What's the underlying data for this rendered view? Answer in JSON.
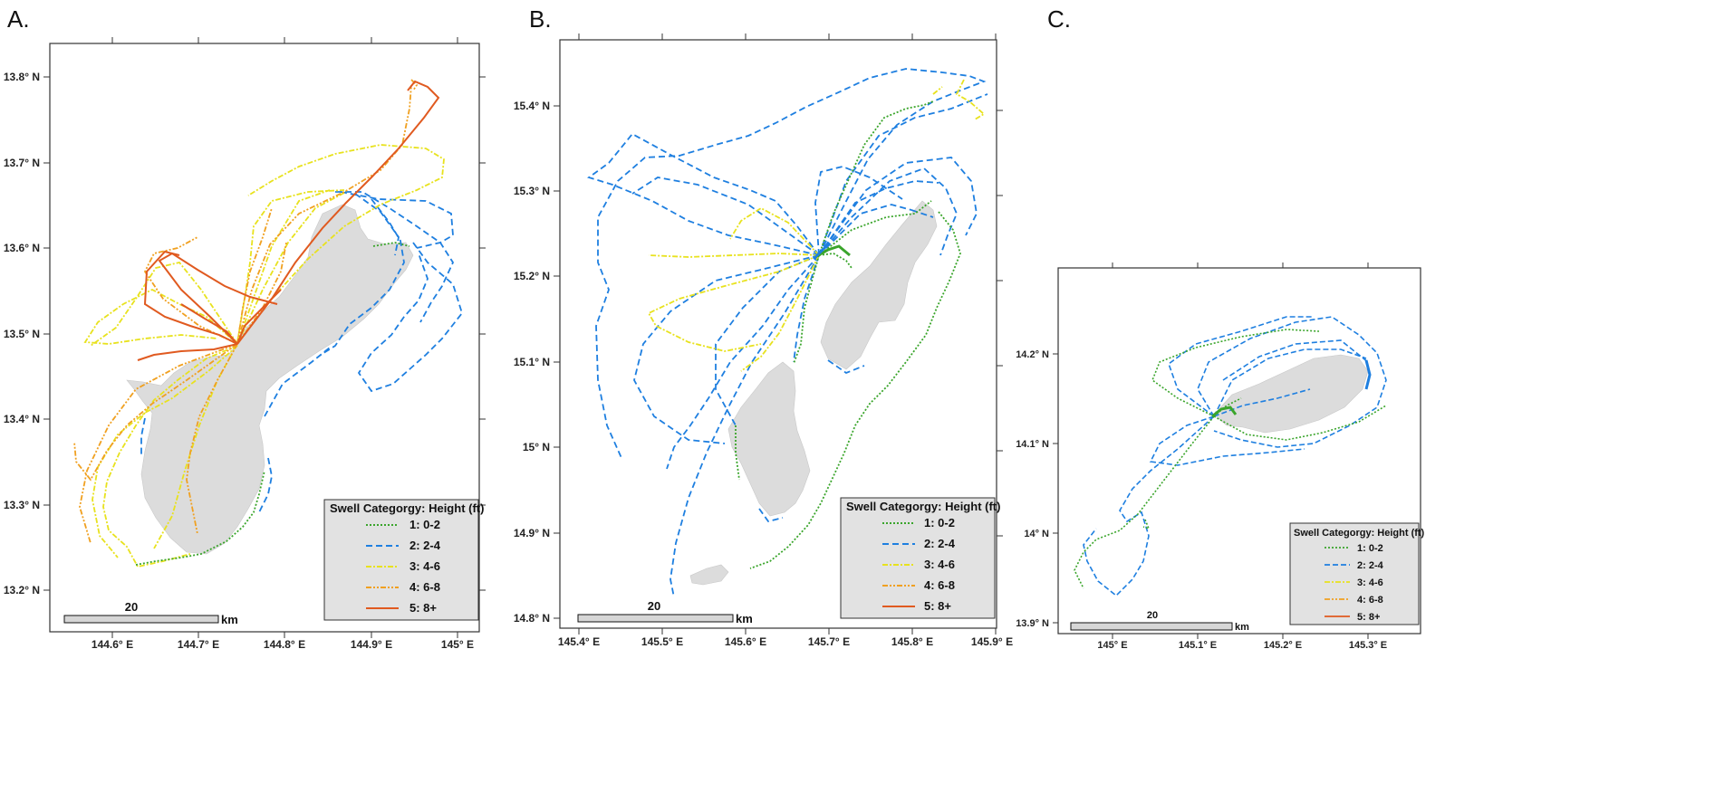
{
  "colors": {
    "c1": "#3aa52b",
    "c2": "#1e7fe0",
    "c3": "#e8e21e",
    "c4": "#f0a020",
    "c5": "#e05a20",
    "land": "#dcdcdc",
    "legend_bg": "#e2e2e2"
  },
  "panels": [
    {
      "letter": "A.",
      "x_ticks": [
        "144.6° E",
        "144.7° E",
        "144.8° E",
        "144.9° E",
        "145° E"
      ],
      "y_ticks": [
        "13.8° N",
        "13.7° N",
        "13.6° N",
        "13.5° N",
        "13.4° N",
        "13.3° N",
        "13.2° N"
      ],
      "legend_title": "Swell Categorgy: Height (ft)",
      "legend_items": [
        "1: 0-2",
        "2: 2-4",
        "3: 4-6",
        "4: 6-8",
        "5: 8+"
      ],
      "scale_number": "20",
      "scale_unit": "km"
    },
    {
      "letter": "B.",
      "x_ticks": [
        "145.4° E",
        "145.5° E",
        "145.6° E",
        "145.7° E",
        "145.8° E",
        "145.9° E"
      ],
      "y_ticks": [
        "15.4° N",
        "15.3° N",
        "15.2° N",
        "15.1° N",
        "15° N",
        "14.9° N",
        "14.8° N"
      ],
      "legend_title": "Swell Categorgy: Height (ft)",
      "legend_items": [
        "1: 0-2",
        "2: 2-4",
        "3: 4-6",
        "4: 6-8",
        "5: 8+"
      ],
      "scale_number": "20",
      "scale_unit": "km"
    },
    {
      "letter": "C.",
      "x_ticks": [
        "145° E",
        "145.1° E",
        "145.2° E",
        "145.3° E"
      ],
      "y_ticks": [
        "14.2° N",
        "14.1° N",
        "14° N",
        "13.9° N"
      ],
      "legend_title": "Swell Categorgy: Height (ft)",
      "legend_items": [
        "1: 0-2",
        "2: 2-4",
        "3: 4-6",
        "4: 6-8",
        "5: 8+"
      ],
      "scale_number": "20",
      "scale_unit": "km"
    }
  ]
}
